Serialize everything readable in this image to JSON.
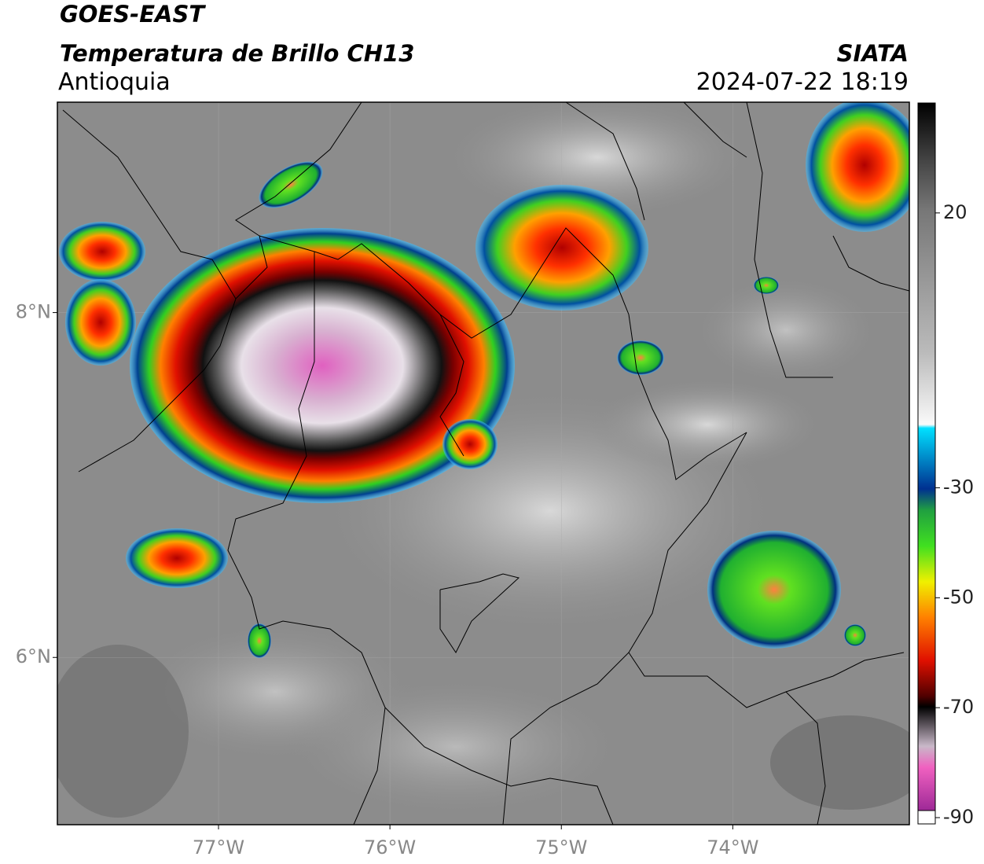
{
  "header": {
    "satellite": "GOES-EAST",
    "product": "Temperatura de Brillo CH13",
    "region": "Antioquia",
    "agency": "SIATA",
    "timestamp": "2024-07-22 18:19"
  },
  "map": {
    "xlim": [
      -77.94,
      -72.97
    ],
    "ylim": [
      5.03,
      9.22
    ],
    "xticks": [
      {
        "value": -77,
        "label": "77°W"
      },
      {
        "value": -76,
        "label": "76°W"
      },
      {
        "value": -75,
        "label": "75°W"
      },
      {
        "value": -74,
        "label": "74°W"
      }
    ],
    "yticks": [
      {
        "value": 8,
        "label": "8°N"
      },
      {
        "value": 6,
        "label": "6°N"
      }
    ]
  },
  "colorbar": {
    "lim": [
      -90,
      40
    ],
    "ticks": [
      20,
      -30,
      -50,
      -70,
      -90
    ]
  }
}
